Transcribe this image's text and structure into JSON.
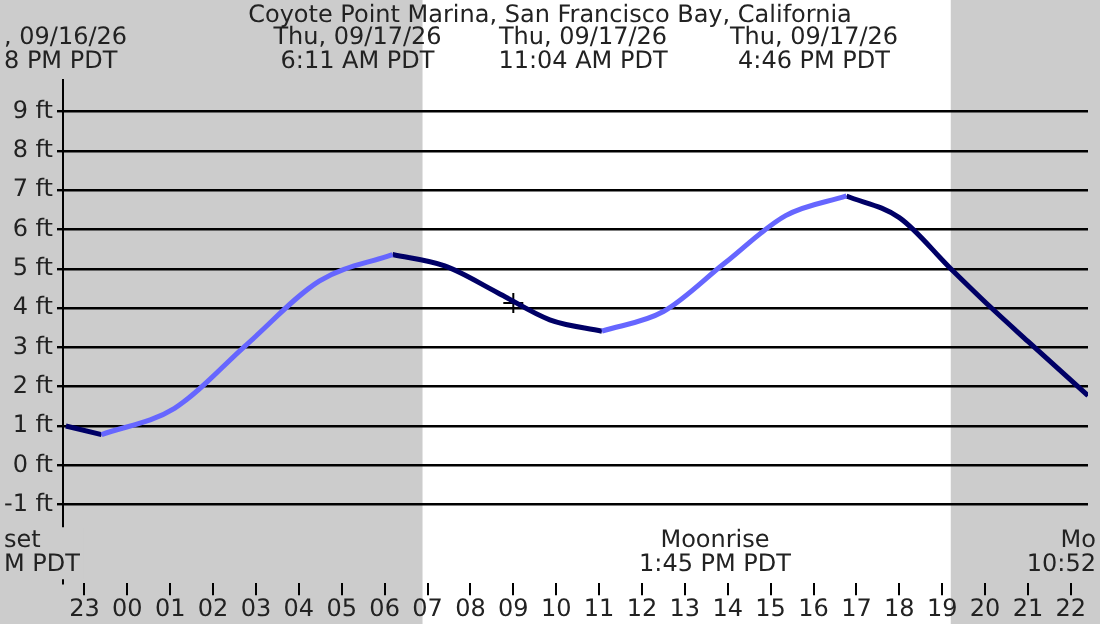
{
  "chart_data": {
    "type": "line",
    "title": "Coyote Point Marina, San Francisco Bay, California",
    "xlim": [
      "--09-16T22:30",
      "--09-17T22:24"
    ],
    "ylim": [
      -3,
      9.8
    ],
    "xticks": [
      {
        "value": "--09-16T23:00",
        "label": "23"
      },
      {
        "value": "--09-17T00:00",
        "label": "00"
      },
      {
        "value": "--09-17T01:00",
        "label": "01"
      },
      {
        "value": "--09-17T02:00",
        "label": "02"
      },
      {
        "value": "--09-17T03:00",
        "label": "03"
      },
      {
        "value": "--09-17T04:00",
        "label": "04"
      },
      {
        "value": "--09-17T05:00",
        "label": "05"
      },
      {
        "value": "--09-17T06:00",
        "label": "06"
      },
      {
        "value": "--09-17T07:00",
        "label": "07"
      },
      {
        "value": "--09-17T08:00",
        "label": "08"
      },
      {
        "value": "--09-17T09:00",
        "label": "09"
      },
      {
        "value": "--09-17T10:00",
        "label": "10"
      },
      {
        "value": "--09-17T11:00",
        "label": "11"
      },
      {
        "value": "--09-17T12:00",
        "label": "12"
      },
      {
        "value": "--09-17T13:00",
        "label": "13"
      },
      {
        "value": "--09-17T14:00",
        "label": "14"
      },
      {
        "value": "--09-17T15:00",
        "label": "15"
      },
      {
        "value": "--09-17T16:00",
        "label": "16"
      },
      {
        "value": "--09-17T17:00",
        "label": "17"
      },
      {
        "value": "--09-17T18:00",
        "label": "18"
      },
      {
        "value": "--09-17T19:00",
        "label": "19"
      },
      {
        "value": "--09-17T20:00",
        "label": "20"
      },
      {
        "value": "--09-17T21:00",
        "label": "21"
      },
      {
        "value": "--09-17T22:00",
        "label": "22"
      }
    ],
    "yticks": [
      {
        "value": -1,
        "label": "-1 ft"
      },
      {
        "value": 0,
        "label": "0 ft"
      },
      {
        "value": 1,
        "label": "1 ft"
      },
      {
        "value": 2,
        "label": "2 ft"
      },
      {
        "value": 3,
        "label": "3 ft"
      },
      {
        "value": 4,
        "label": "4 ft"
      },
      {
        "value": 5,
        "label": "5 ft"
      },
      {
        "value": 6,
        "label": "6 ft"
      },
      {
        "value": 7,
        "label": "7 ft"
      },
      {
        "value": 8,
        "label": "8 ft"
      },
      {
        "value": 9,
        "label": "9 ft"
      }
    ],
    "grid": "y",
    "legend": false,
    "marker": "none",
    "line_style": "solid",
    "series": [
      {
        "color": "#6666ff",
        "x": [
          "--09-16T23:24",
          "--09-17T01:06",
          "--09-17T02:47",
          "--09-17T04:29",
          "--09-17T06:11",
          "--09-17T08:38",
          "--09-17T11:04",
          "--09-17T12:30",
          "--09-17T13:55",
          "--09-17T15:21",
          "--09-17T16:46"
        ],
        "values": [
          0.78,
          1.45,
          3.07,
          4.69,
          5.36,
          null,
          3.41,
          3.91,
          5.13,
          6.35,
          6.85
        ]
      },
      {
        "color": "#000066",
        "x": [
          "--09-16T22:34",
          "--09-16T23:24",
          "--09-17T02:47",
          "--09-17T06:11",
          "--09-17T07:24",
          "--09-17T08:38",
          "--09-17T09:51",
          "--09-17T11:04",
          "--09-17T13:55",
          "--09-17T16:46",
          "--09-17T18:00",
          "--09-17T19:12",
          "--09-17T20:06",
          "--09-17T21:00",
          "--09-17T22:24"
        ],
        "values": [
          1.0,
          0.78,
          null,
          5.36,
          5.07,
          4.39,
          3.7,
          3.41,
          null,
          6.85,
          6.3,
          5.0,
          4.05,
          3.15,
          1.77
        ]
      },
      {
        "type": "scatter",
        "marker": "cross",
        "color": "#000000",
        "x": [
          "--09-17T09:00"
        ],
        "values": [
          4.13
        ]
      }
    ],
    "bands": [
      {
        "axis": "x",
        "from": "--09-16T22:30",
        "to": "--09-17T06:53",
        "color": "#cccccc"
      },
      {
        "axis": "x",
        "from": "--09-17T19:12",
        "to": "--09-17T22:24",
        "color": "#cccccc"
      }
    ],
    "annotations": [
      ", 09/16/26\n8 PM PDT",
      "Thu, 09/17/26\n6:11 AM PDT",
      "Thu, 09/17/26\n11:04 AM PDT",
      "Thu, 09/17/26\n4:46 PM PDT",
      "Moonrise\n1:45 PM PDT",
      "set\nM PDT",
      "Mo\n10:52"
    ]
  }
}
